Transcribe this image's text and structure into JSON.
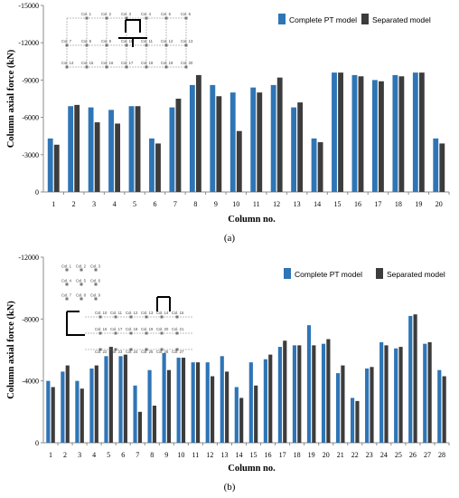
{
  "colors": {
    "complete": "#2e75b6",
    "separated": "#3c3c3c",
    "axis": "#8c8c8c",
    "grid_line": "#7f7f7f"
  },
  "chart_data": [
    {
      "type": "bar",
      "caption": "(a)",
      "ylabel": "Column axial force (kN)",
      "xlabel": "Column no.",
      "ylim": [
        0,
        -15000
      ],
      "yticks": [
        0,
        -3000,
        -6000,
        -9000,
        -12000,
        -15000
      ],
      "grid": false,
      "legend_position": "top-right",
      "categories": [
        "1",
        "2",
        "3",
        "4",
        "5",
        "6",
        "7",
        "8",
        "9",
        "10",
        "11",
        "12",
        "13",
        "14",
        "15",
        "16",
        "17",
        "18",
        "19",
        "20"
      ],
      "series": [
        {
          "name": "Complete PT model",
          "color": "#2e75b6",
          "values": [
            -4300,
            -6900,
            -6800,
            -6600,
            -6900,
            -4300,
            -6800,
            -8600,
            -8600,
            -8000,
            -8400,
            -8600,
            -6800,
            -4300,
            -9600,
            -9400,
            -9000,
            -9400,
            -9600,
            -4300
          ]
        },
        {
          "name": "Separated model",
          "color": "#3c3c3c",
          "values": [
            -3800,
            -7000,
            -5600,
            -5500,
            -6900,
            -3900,
            -7500,
            -9400,
            -7700,
            -4900,
            -8000,
            -9200,
            -7200,
            -4000,
            -9600,
            -9300,
            -8900,
            -9300,
            -9600,
            -3900
          ]
        }
      ],
      "inset": {
        "labels": [
          "Col. 1",
          "Col. 2",
          "Col. 3",
          "Col. 4",
          "Col. 5",
          "Col. 6",
          "Col. 7",
          "Col. 8",
          "Col. 9",
          "Col. 10",
          "Col. 11",
          "Col. 12",
          "Col. 13",
          "Col. 14",
          "Col. 15",
          "Col. 16",
          "Col. 17",
          "Col. 18",
          "Col. 19",
          "Col. 20"
        ]
      }
    },
    {
      "type": "bar",
      "caption": "(b)",
      "ylabel": "Column axial force (kN)",
      "xlabel": "Column no.",
      "ylim": [
        0,
        -12000
      ],
      "yticks": [
        0,
        -4000,
        -8000,
        -12000
      ],
      "grid": false,
      "legend_position": "top-right",
      "categories": [
        "1",
        "2",
        "3",
        "4",
        "5",
        "6",
        "7",
        "8",
        "9",
        "10",
        "11",
        "12",
        "13",
        "14",
        "15",
        "16",
        "17",
        "18",
        "19",
        "20",
        "21",
        "22",
        "23",
        "24",
        "25",
        "26",
        "27",
        "28"
      ],
      "series": [
        {
          "name": "Complete PT model",
          "color": "#2e75b6",
          "values": [
            -4000,
            -4600,
            -4000,
            -4800,
            -5600,
            -5600,
            -3700,
            -4700,
            -5800,
            -5500,
            -5200,
            -5200,
            -5600,
            -3600,
            -5200,
            -5400,
            -6200,
            -6300,
            -7600,
            -6400,
            -4500,
            -2900,
            -4800,
            -6500,
            -6100,
            -8200,
            -6400,
            -4700
          ]
        },
        {
          "name": "Separated model",
          "color": "#3c3c3c",
          "values": [
            -3600,
            -5000,
            -3500,
            -5000,
            -6200,
            -5700,
            -2000,
            -2400,
            -4700,
            -5500,
            -5200,
            -4300,
            -4600,
            -2900,
            -3700,
            -5700,
            -6600,
            -6300,
            -6300,
            -6700,
            -5000,
            -2700,
            -4900,
            -6300,
            -6200,
            -8300,
            -6500,
            -4300
          ]
        }
      ],
      "inset": {
        "labels": [
          "Col. 1",
          "Col. 2",
          "Col. 3",
          "Col. 4",
          "Col. 5",
          "Col. 6",
          "Col. 7",
          "Col. 8",
          "Col. 9",
          "Col. 10",
          "Col. 11",
          "Col. 12",
          "Col. 13",
          "Col. 14",
          "Col. 15",
          "Col. 16",
          "Col. 17",
          "Col. 18",
          "Col. 19",
          "Col. 20",
          "Col. 21",
          "Col. 22",
          "Col. 23",
          "Col. 24",
          "Col. 25",
          "Col. 26",
          "Col. 27",
          "Col. 28"
        ]
      }
    }
  ]
}
